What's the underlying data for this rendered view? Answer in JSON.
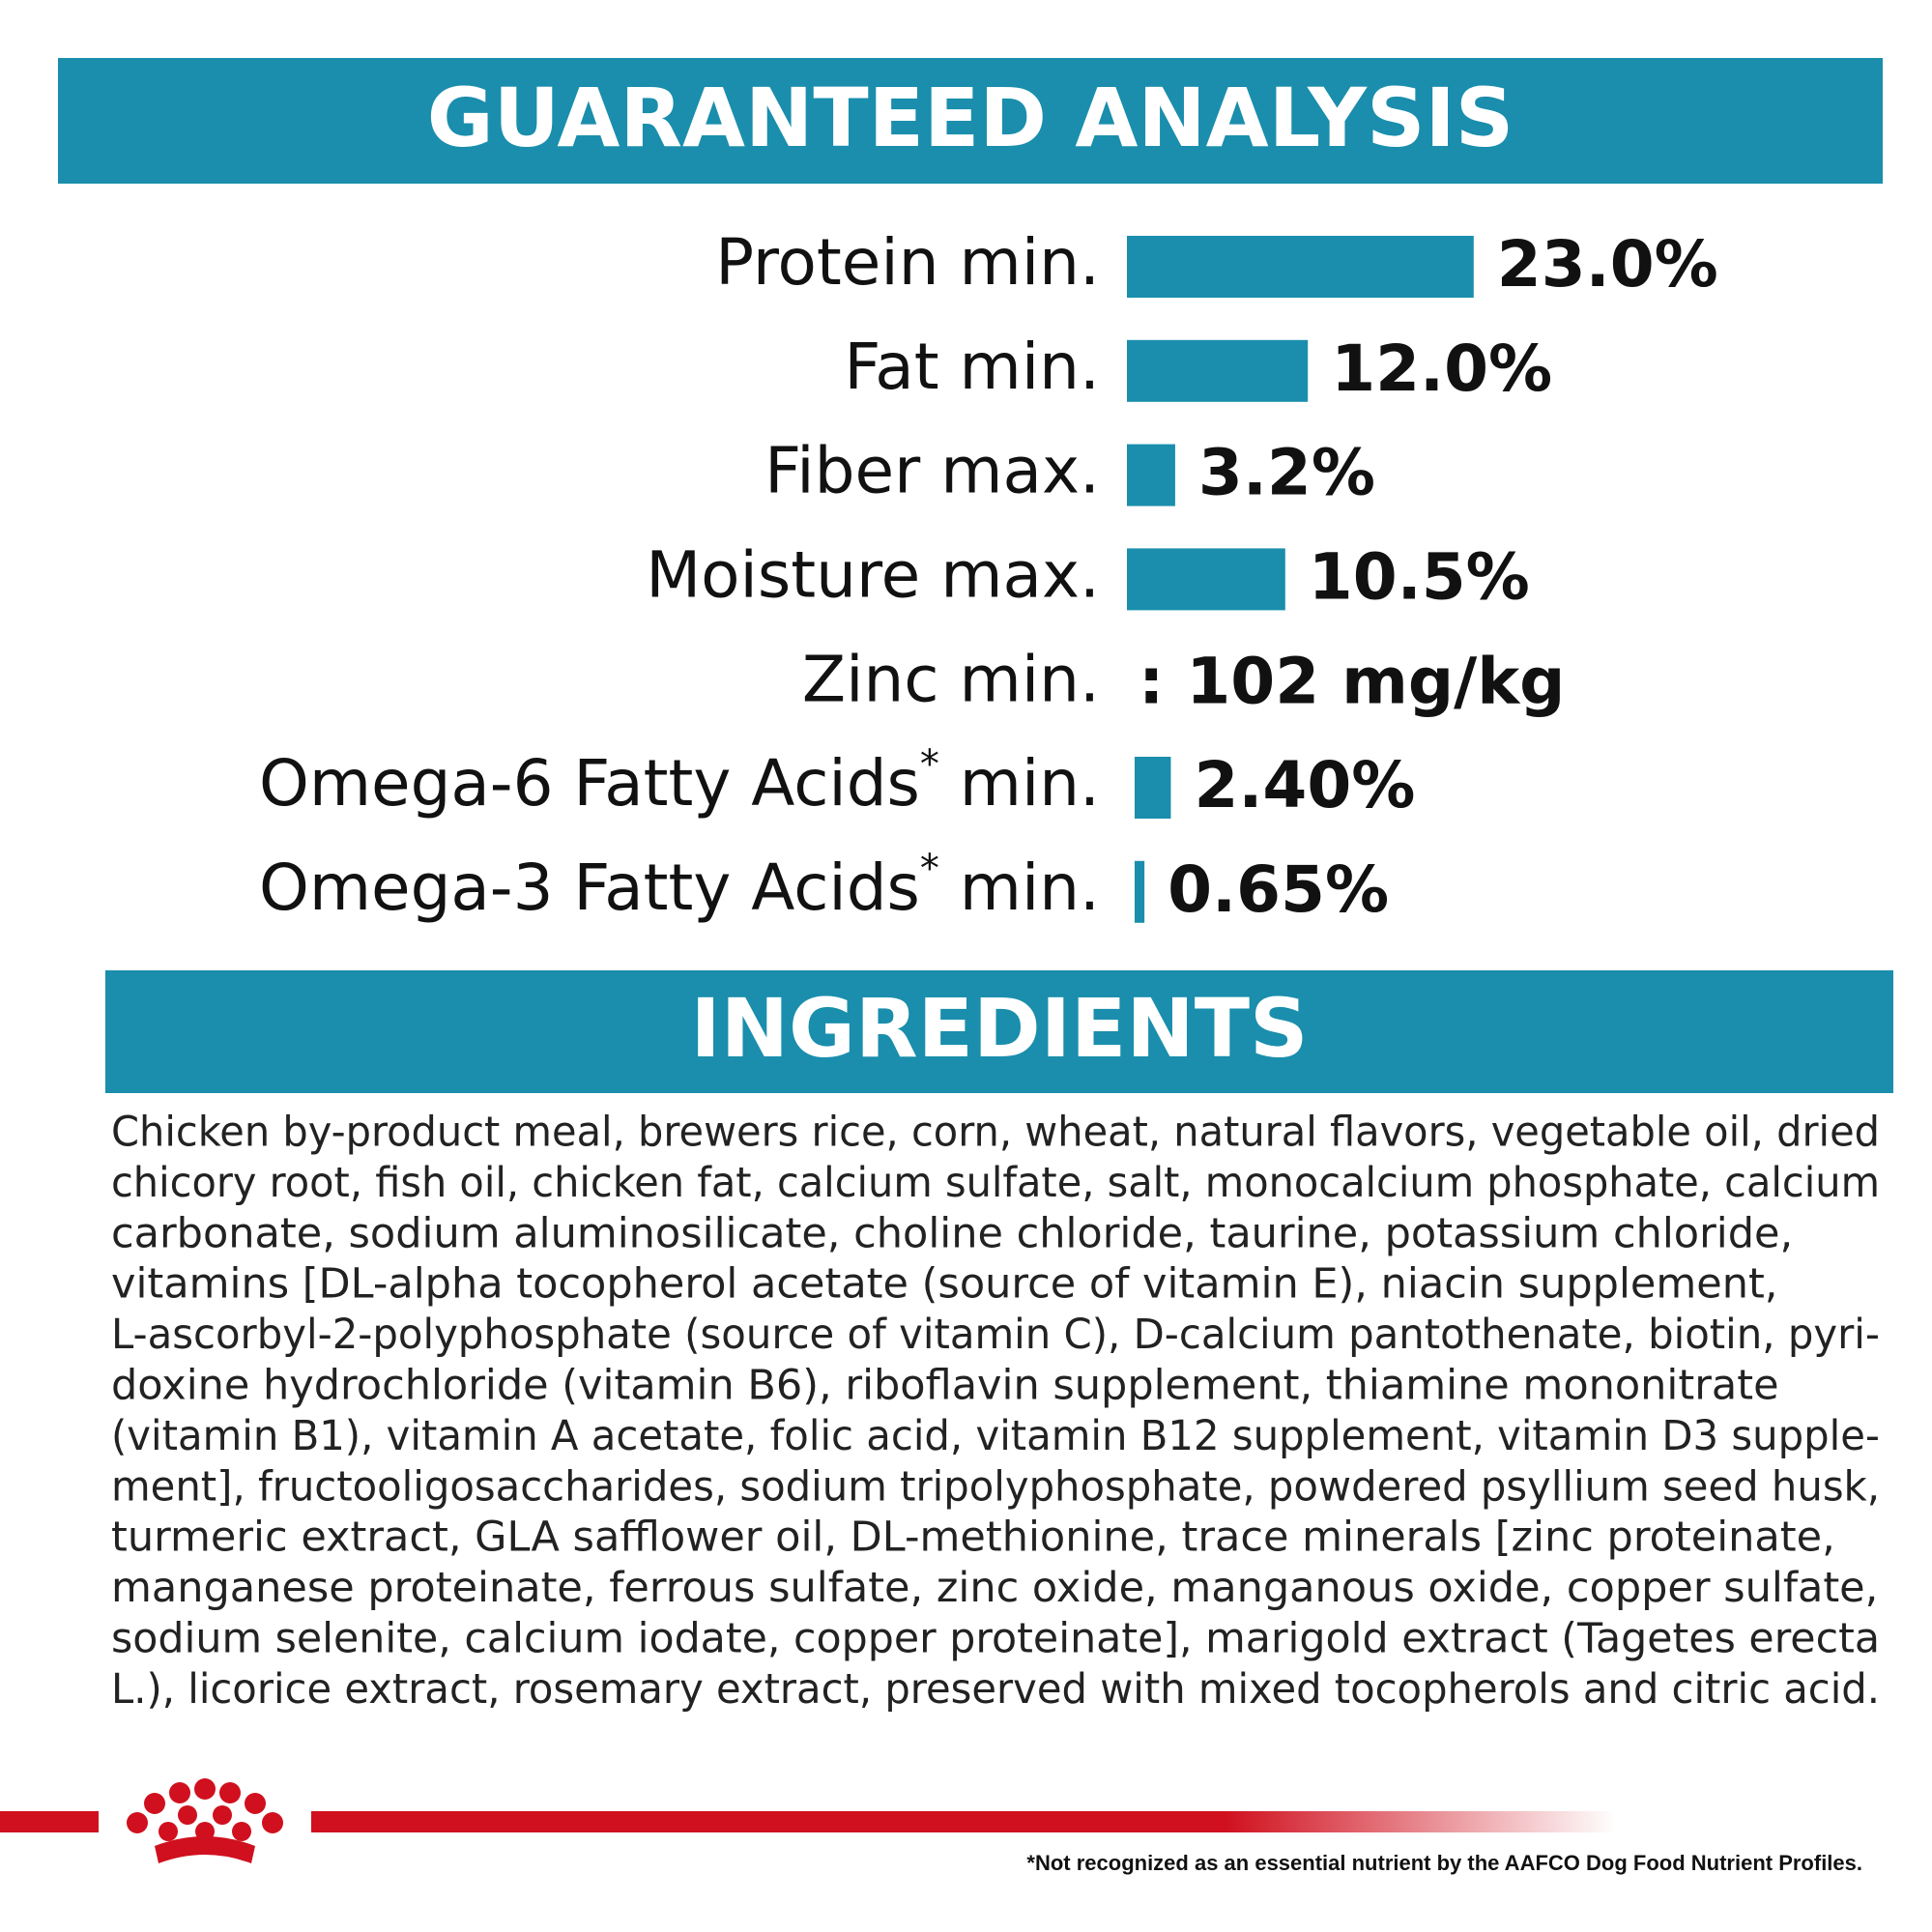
{
  "chart_data": {
    "type": "bar",
    "title": "GUARANTEED ANALYSIS",
    "color": "#1a8eac",
    "categories": [
      "Protein min.",
      "Fat min.",
      "Fiber max.",
      "Moisture max.",
      "Zinc min.",
      "Omega-6 Fatty Acids* min.",
      "Omega-3 Fatty Acids* min."
    ],
    "values": [
      23.0,
      12.0,
      3.2,
      10.5,
      null,
      2.4,
      0.65
    ],
    "value_labels": [
      "23.0%",
      "12.0%",
      "3.2%",
      "10.5%",
      ": 102 mg/kg",
      "2.40%",
      "0.65%"
    ]
  },
  "ingredients": {
    "title": "INGREDIENTS",
    "lines": [
      "Chicken by-product meal, brewers rice, corn, wheat, natural flavors, vegetable oil, dried",
      "chicory root, fish oil, chicken fat, calcium sulfate, salt, monocalcium phosphate, calcium",
      "carbonate, sodium aluminosilicate, choline chloride, taurine, potassium chloride,",
      "vitamins [DL-alpha tocopherol acetate (source of vitamin E), niacin supplement,",
      "L-ascorbyl-2-polyphosphate (source of vitamin C), D-calcium pantothenate, biotin, pyri-",
      "doxine hydrochloride (vitamin B6), riboflavin supplement, thiamine mononitrate",
      "(vitamin B1), vitamin A acetate, folic acid, vitamin B12 supplement, vitamin D3 supple-",
      "ment], fructooligosaccharides, sodium tripolyphosphate, powdered psyllium seed husk,",
      "turmeric extract, GLA safflower oil, DL-methionine, trace minerals [zinc proteinate,",
      "manganese proteinate, ferrous sulfate, zinc oxide, manganous oxide, copper sulfate,",
      "sodium selenite, calcium iodate, copper proteinate], marigold extract (Tagetes erecta",
      "L.), licorice extract, rosemary extract, preserved with mixed tocopherols and citric acid."
    ]
  },
  "footnote": "*Not recognized as an essential nutrient by the AAFCO Dog Food Nutrient Profiles."
}
